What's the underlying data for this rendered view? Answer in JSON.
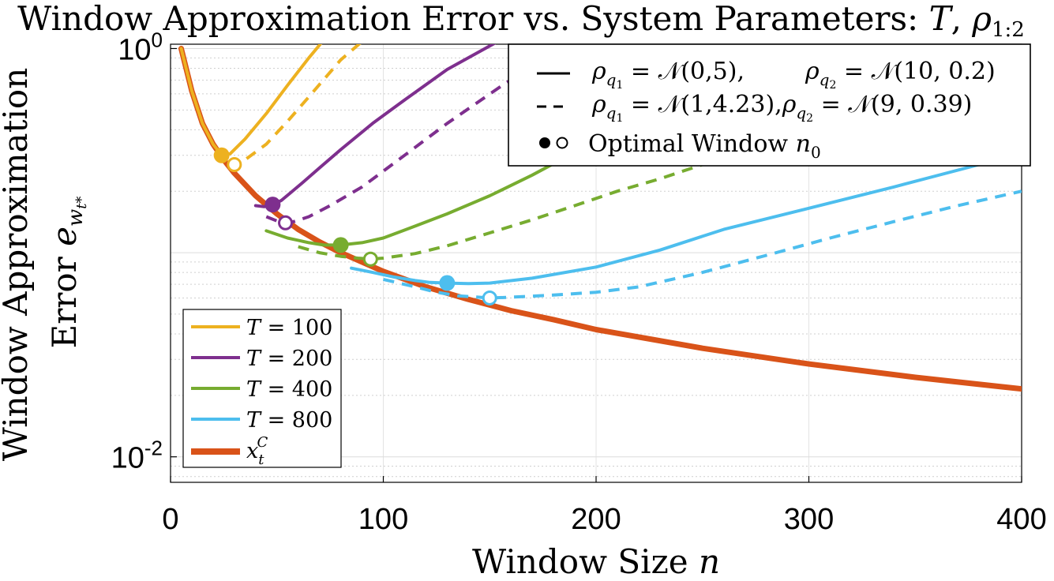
{
  "chart_data": {
    "type": "line",
    "title": "Window Approximation Error vs. System Parameters: T, ρ1:2",
    "title_main": "Window Approximation Error vs. System Parameters: ",
    "title_T": "T",
    "title_sep": ", ",
    "title_rho": "ρ",
    "title_rho_sub": "1:2",
    "xlabel": "Window Size n",
    "xlabel_main": "Window Size ",
    "xlabel_var": "n",
    "ylabel": "Window Approximation Error e_{w_t*}",
    "ylabel_line1": "Window Approximation",
    "ylabel_line2_main": "Error ",
    "ylabel_line2_var": "e",
    "ylabel_line2_sub": "w",
    "ylabel_line2_subsub": "t*",
    "x_ticks": [
      "0",
      "100",
      "200",
      "300",
      "400"
    ],
    "x_tick_values": [
      0,
      100,
      200,
      300,
      400
    ],
    "y_ticks": [
      {
        "value": 1,
        "base": "10",
        "exp": "0"
      },
      {
        "value": 0.01,
        "base": "10",
        "exp": "-2"
      }
    ],
    "xlim": [
      0,
      400
    ],
    "ylim": [
      0.0075,
      1.05
    ],
    "yscale": "log",
    "grid": true,
    "colors": {
      "T100": "#EDB120",
      "T200": "#7E2F8E",
      "T400": "#77AC30",
      "T800": "#4DBEEE",
      "xC": "#D95319"
    },
    "series": [
      {
        "key": "T100",
        "name": "T = 100",
        "name_var": "T",
        "name_rest": " = 100",
        "style": "solid",
        "x": [
          5,
          10,
          15,
          20,
          24,
          28,
          35,
          45,
          55,
          65,
          75
        ],
        "y": [
          1.0,
          0.62,
          0.43,
          0.34,
          0.3,
          0.305,
          0.36,
          0.48,
          0.66,
          0.9,
          1.2
        ]
      },
      {
        "key": "T100",
        "name": "",
        "style": "dashed",
        "x": [
          28,
          30,
          35,
          45,
          55,
          65,
          80,
          95
        ],
        "y": [
          0.28,
          0.27,
          0.285,
          0.34,
          0.44,
          0.58,
          0.88,
          1.2
        ]
      },
      {
        "key": "T200",
        "name": "T = 200",
        "name_var": "T",
        "name_rest": " = 200",
        "style": "solid",
        "x": [
          40,
          44,
          48,
          52,
          56,
          62,
          70,
          80,
          95,
          110,
          130,
          155,
          180
        ],
        "y": [
          0.17,
          0.168,
          0.172,
          0.18,
          0.195,
          0.22,
          0.26,
          0.32,
          0.43,
          0.56,
          0.79,
          1.1,
          1.45
        ]
      },
      {
        "key": "T200",
        "name": "",
        "style": "dashed",
        "x": [
          45,
          50,
          54,
          58,
          65,
          75,
          90,
          110,
          130,
          155,
          170,
          180
        ],
        "y": [
          0.15,
          0.143,
          0.14,
          0.142,
          0.15,
          0.17,
          0.21,
          0.3,
          0.43,
          0.65,
          0.82,
          0.96
        ]
      },
      {
        "key": "T400",
        "name": "T = 400",
        "name_var": "T",
        "name_rest": " = 400",
        "style": "solid",
        "x": [
          45,
          55,
          65,
          72,
          80,
          90,
          100,
          115,
          130,
          150,
          170,
          190,
          210,
          240
        ],
        "y": [
          0.128,
          0.118,
          0.112,
          0.109,
          0.109,
          0.112,
          0.118,
          0.135,
          0.155,
          0.19,
          0.24,
          0.31,
          0.4,
          0.55
        ]
      },
      {
        "key": "T400",
        "name": "",
        "style": "dashed",
        "x": [
          60,
          70,
          80,
          88,
          94,
          100,
          115,
          130,
          150,
          170,
          190,
          210,
          230,
          250
        ],
        "y": [
          0.107,
          0.1,
          0.096,
          0.094,
          0.093,
          0.094,
          0.099,
          0.108,
          0.125,
          0.145,
          0.17,
          0.2,
          0.23,
          0.27
        ]
      },
      {
        "key": "T800",
        "name": "T = 800",
        "name_var": "T",
        "name_rest": " = 800",
        "style": "solid",
        "x": [
          85,
          95,
          105,
          115,
          122,
          130,
          140,
          150,
          170,
          200,
          230,
          260,
          300,
          340,
          380,
          400
        ],
        "y": [
          0.084,
          0.08,
          0.076,
          0.073,
          0.0715,
          0.071,
          0.0705,
          0.071,
          0.075,
          0.085,
          0.103,
          0.13,
          0.165,
          0.21,
          0.27,
          0.32
        ]
      },
      {
        "key": "T800",
        "name": "",
        "style": "dashed",
        "x": [
          100,
          115,
          125,
          135,
          145,
          150,
          160,
          180,
          200,
          220,
          250,
          280,
          310,
          340,
          370,
          400
        ],
        "y": [
          0.074,
          0.068,
          0.064,
          0.0615,
          0.0605,
          0.06,
          0.0605,
          0.062,
          0.064,
          0.068,
          0.08,
          0.097,
          0.118,
          0.142,
          0.17,
          0.2
        ]
      },
      {
        "key": "xC",
        "name": "x_t^C",
        "name_var": "x",
        "name_sub": "t",
        "name_sup": "C",
        "style": "solid",
        "x": [
          5,
          10,
          15,
          20,
          25,
          30,
          40,
          50,
          60,
          70,
          80,
          100,
          120,
          140,
          160,
          180,
          200,
          250,
          300,
          350,
          400
        ],
        "y": [
          1.0,
          0.62,
          0.43,
          0.34,
          0.285,
          0.245,
          0.19,
          0.155,
          0.13,
          0.113,
          0.1,
          0.081,
          0.068,
          0.059,
          0.052,
          0.047,
          0.042,
          0.034,
          0.0285,
          0.0245,
          0.0215
        ]
      }
    ],
    "optimal_windows": [
      {
        "key": "T100",
        "x": 24,
        "y": 0.3,
        "filled": true
      },
      {
        "key": "T100",
        "x": 30,
        "y": 0.27,
        "filled": false
      },
      {
        "key": "T200",
        "x": 48,
        "y": 0.172,
        "filled": true
      },
      {
        "key": "T200",
        "x": 54,
        "y": 0.14,
        "filled": false
      },
      {
        "key": "T400",
        "x": 80,
        "y": 0.109,
        "filled": true
      },
      {
        "key": "T400",
        "x": 94,
        "y": 0.093,
        "filled": false
      },
      {
        "key": "T800",
        "x": 130,
        "y": 0.071,
        "filled": true
      },
      {
        "key": "T800",
        "x": 150,
        "y": 0.06,
        "filled": false
      }
    ],
    "legend_style": {
      "placement": "top-right",
      "entries": [
        {
          "style": "solid",
          "rho1_label": "ρ",
          "rho1_sub": "q",
          "rho1_subsub": "1",
          "rho1_dist": " = 𝒩(0,5),",
          "rho2_label": "ρ",
          "rho2_sub": "q",
          "rho2_subsub": "2",
          "rho2_dist": " = 𝒩(10, 0.2)"
        },
        {
          "style": "dashed",
          "rho1_label": "ρ",
          "rho1_sub": "q",
          "rho1_subsub": "1",
          "rho1_dist": " = 𝒩(1,4.23),",
          "rho2_label": "ρ",
          "rho2_sub": "q",
          "rho2_subsub": "2",
          "rho2_dist": " = 𝒩(9, 0.39)"
        }
      ],
      "optimal_label": "Optimal Window ",
      "optimal_var": "n",
      "optimal_sub": "0"
    },
    "legend_series_placement": "bottom-left"
  }
}
